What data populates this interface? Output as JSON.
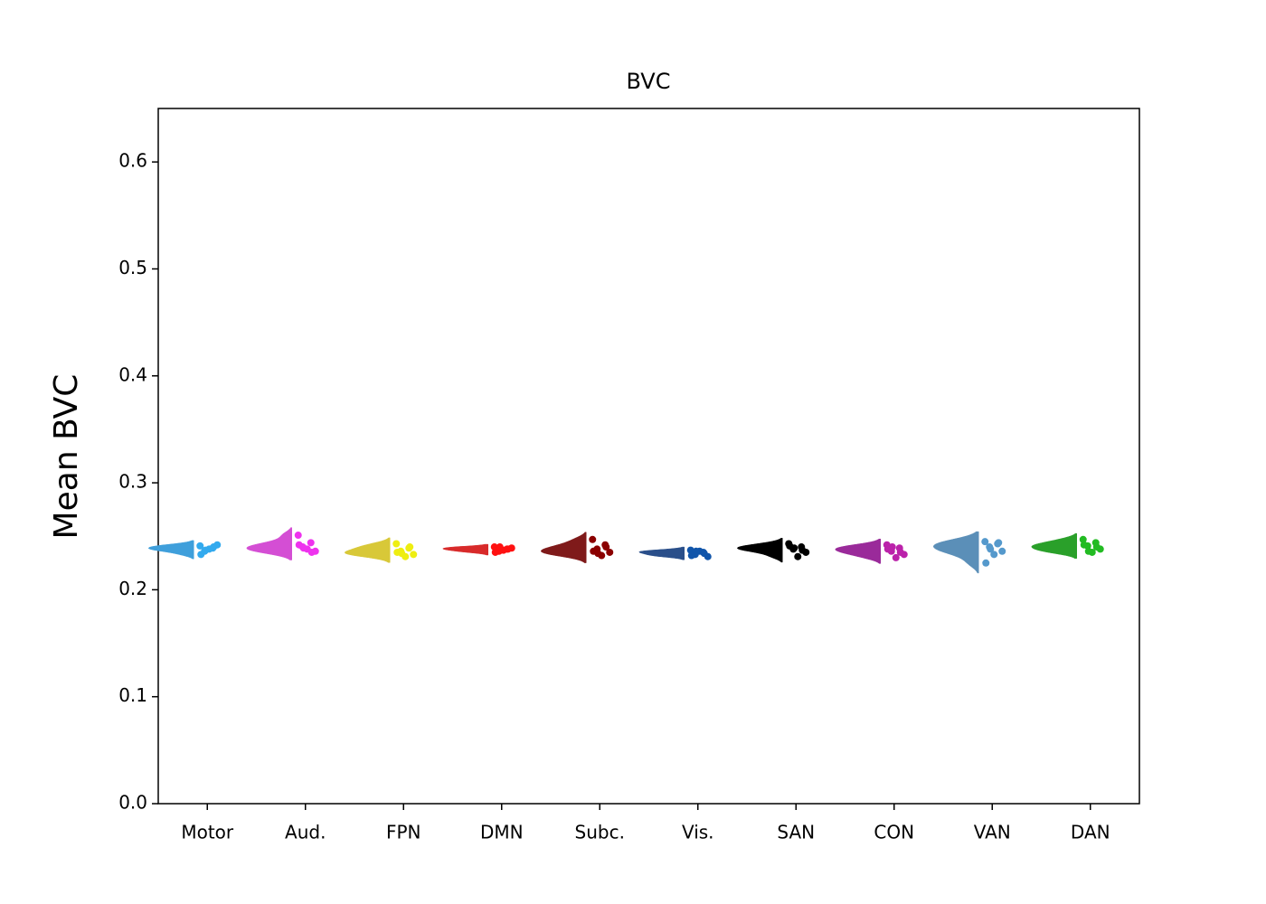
{
  "chart_data": {
    "type": "raincloud",
    "title": "BVC",
    "ylabel": "Mean BVC",
    "categories": [
      "Motor",
      "Aud.",
      "FPN",
      "DMN",
      "Subc.",
      "Vis.",
      "SAN",
      "CON",
      "VAN",
      "DAN"
    ],
    "values": [
      [
        0.241,
        0.239,
        0.236,
        0.242,
        0.238,
        0.233,
        0.24,
        0.237
      ],
      [
        0.251,
        0.244,
        0.24,
        0.236,
        0.238,
        0.242,
        0.235,
        0.239
      ],
      [
        0.243,
        0.239,
        0.236,
        0.233,
        0.231,
        0.235,
        0.24,
        0.234
      ],
      [
        0.24,
        0.238,
        0.236,
        0.239,
        0.237,
        0.235,
        0.238,
        0.24
      ],
      [
        0.247,
        0.242,
        0.238,
        0.235,
        0.232,
        0.236,
        0.24,
        0.234
      ],
      [
        0.237,
        0.235,
        0.233,
        0.231,
        0.236,
        0.232,
        0.234,
        0.236
      ],
      [
        0.243,
        0.24,
        0.238,
        0.235,
        0.231,
        0.241,
        0.237,
        0.239
      ],
      [
        0.242,
        0.239,
        0.236,
        0.233,
        0.23,
        0.238,
        0.235,
        0.24
      ],
      [
        0.245,
        0.243,
        0.24,
        0.236,
        0.233,
        0.225,
        0.244,
        0.238
      ],
      [
        0.247,
        0.244,
        0.241,
        0.238,
        0.235,
        0.242,
        0.24,
        0.236
      ]
    ],
    "colors": [
      "#33aaee",
      "#ee33ee",
      "#eeee11",
      "#ff1111",
      "#8b0000",
      "#1155aa",
      "#000000",
      "#bb22aa",
      "#5599cc",
      "#22bb22"
    ],
    "violin_colors": [
      "#3f9fdb",
      "#d44ed4",
      "#d8c838",
      "#d82a2a",
      "#7f1a1a",
      "#2a4f8a",
      "#000000",
      "#9a2a9a",
      "#5b8fb8",
      "#2aa02a"
    ],
    "ylim": [
      0,
      0.65
    ],
    "yticks": [
      {
        "value": 0,
        "label": "0.0"
      },
      0.1,
      0.2,
      0.3,
      0.4,
      0.5,
      0.6
    ]
  }
}
